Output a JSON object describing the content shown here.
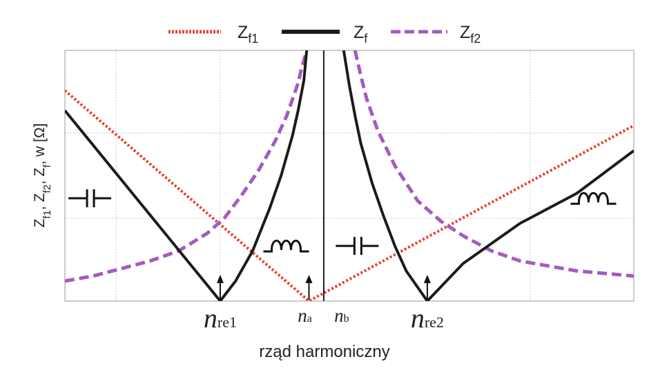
{
  "chart_data": {
    "type": "line",
    "title": "",
    "xlabel": "rząd harmoniczny",
    "ylabel_parts": [
      {
        "t": "Z"
      },
      {
        "t": "f1",
        "sub": true
      },
      {
        "t": ", Z"
      },
      {
        "t": "f2",
        "sub": true
      },
      {
        "t": ", Z"
      },
      {
        "t": "f",
        "sub": true
      },
      {
        "t": ", w [Ω]"
      }
    ],
    "x_range": [
      0,
      1
    ],
    "y_range": [
      0,
      1
    ],
    "grid": true,
    "legend_position": "top-center",
    "legend": [
      {
        "main": "Z",
        "sub": "f1",
        "series": "Zf1"
      },
      {
        "main": "Z",
        "sub": "f",
        "series": "Zf"
      },
      {
        "main": "Z",
        "sub": "f2",
        "series": "Zf2"
      }
    ],
    "series": [
      {
        "id": "Zf1",
        "color": "#e8412d",
        "style": "dotted",
        "points": [
          [
            0.0,
            0.84
          ],
          [
            0.429,
            0.0
          ],
          [
            1.0,
            0.7
          ]
        ]
      },
      {
        "id": "Zf2",
        "color": "#a25cc0",
        "style": "dashed",
        "x": [
          0.0,
          0.05,
          0.1,
          0.15,
          0.2,
          0.25,
          0.28,
          0.31,
          0.34,
          0.37,
          0.39,
          0.41,
          0.415,
          0.42,
          0.425
        ],
        "y": [
          0.08,
          0.1,
          0.13,
          0.16,
          0.2,
          0.27,
          0.33,
          0.42,
          0.52,
          0.64,
          0.74,
          0.87,
          0.92,
          0.96,
          1.0
        ],
        "x_right": [
          0.51,
          0.52,
          0.53,
          0.55,
          0.58,
          0.62,
          0.66,
          0.7,
          0.75,
          0.8,
          0.85,
          0.9,
          0.95,
          1.0
        ],
        "y_right": [
          1.0,
          0.9,
          0.81,
          0.68,
          0.54,
          0.4,
          0.32,
          0.26,
          0.2,
          0.16,
          0.14,
          0.12,
          0.11,
          0.1
        ]
      },
      {
        "id": "Zf",
        "color": "#1b1b1b",
        "style": "solid",
        "x": [
          0.0,
          0.273,
          0.3,
          0.33,
          0.36,
          0.38,
          0.4,
          0.41,
          0.42,
          0.425
        ],
        "y": [
          0.76,
          0.0,
          0.08,
          0.2,
          0.37,
          0.5,
          0.66,
          0.76,
          0.88,
          1.0
        ],
        "x_right": [
          0.49,
          0.5,
          0.51,
          0.52,
          0.54,
          0.56,
          0.58,
          0.6,
          0.637,
          0.7,
          0.8,
          0.9,
          1.0
        ],
        "y_right": [
          1.0,
          0.86,
          0.74,
          0.63,
          0.47,
          0.34,
          0.22,
          0.12,
          0.0,
          0.15,
          0.31,
          0.43,
          0.6
        ]
      }
    ],
    "resonance_markers": [
      {
        "x": 0.273,
        "main": "n",
        "sub": "re1",
        "size": "large"
      },
      {
        "x": 0.429,
        "main": "n",
        "sub": "a",
        "size": "small"
      },
      {
        "x": 0.637,
        "main": "n",
        "sub": "re2",
        "size": "large"
      }
    ],
    "pole_x": 0.455,
    "pole_label": {
      "main": "n",
      "sub": "b"
    },
    "symbols": [
      {
        "kind": "capacitor",
        "x": 0.045,
        "y": 0.41
      },
      {
        "kind": "inductor",
        "x": 0.395,
        "y": 0.22
      },
      {
        "kind": "capacitor",
        "x": 0.515,
        "y": 0.22
      },
      {
        "kind": "inductor",
        "x": 0.935,
        "y": 0.41
      }
    ]
  }
}
